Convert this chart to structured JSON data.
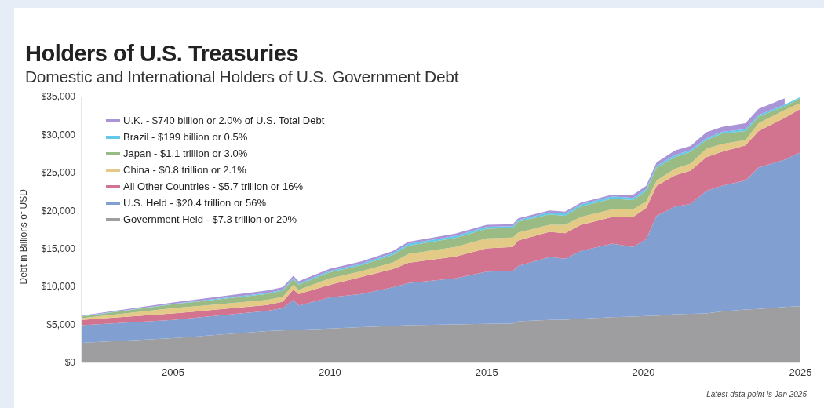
{
  "chart_data": {
    "type": "area",
    "title": "Holders of U.S. Treasuries",
    "subtitle": "Domestic and International Holders of U.S. Government Debt",
    "ylabel": "Debt in Billions of USD",
    "annotations": [
      "Latest data point is Jan 2025"
    ],
    "stacked": true,
    "legend": "top left",
    "grid": false,
    "x": [
      "2002-02",
      "2005-01",
      "2008-01",
      "2008-07",
      "2008-11",
      "2009-01",
      "2010-01",
      "2011-01",
      "2012-01",
      "2012-07",
      "2014-01",
      "2015-01",
      "2015-11",
      "2016-01",
      "2017-01",
      "2017-07",
      "2018-01",
      "2019-01",
      "2019-09",
      "2020-02",
      "2020-06",
      "2021-01",
      "2021-07",
      "2022-01",
      "2022-07",
      "2023-04",
      "2023-09",
      "2024-07",
      "2025-01"
    ],
    "xlim": [
      "2002-02",
      "2025-01"
    ],
    "xticks": [
      "2005",
      "2010",
      "2015",
      "2020",
      "2025"
    ],
    "ylim": [
      0,
      35000
    ],
    "yticks": [
      {
        "value": 0,
        "label": "$0"
      },
      {
        "value": 5000,
        "label": "$5,000"
      },
      {
        "value": 10000,
        "label": "$10,000"
      },
      {
        "value": 15000,
        "label": "$15,000"
      },
      {
        "value": 20000,
        "label": "$20,000"
      },
      {
        "value": 25000,
        "label": "$25,000"
      },
      {
        "value": 30000,
        "label": "$30,000"
      },
      {
        "value": 35000,
        "label": "$35,000"
      }
    ],
    "series": [
      {
        "name": "Government Held - $7.3 trillion or 20%",
        "color": "#9e9ea0",
        "values": [
          2570,
          3190,
          4120,
          4200,
          4300,
          4320,
          4470,
          4650,
          4800,
          4910,
          5000,
          5080,
          5100,
          5420,
          5600,
          5620,
          5760,
          5950,
          6050,
          6110,
          6150,
          6350,
          6400,
          6450,
          6700,
          6960,
          7050,
          7300,
          7410
        ]
      },
      {
        "name": "U.S. Held - $20.4 trillion or 56%",
        "color": "#829fd1",
        "values": [
          2330,
          2410,
          2670,
          2940,
          3930,
          3160,
          4110,
          4370,
          5080,
          5540,
          6080,
          6860,
          6940,
          7280,
          8290,
          8030,
          8920,
          9690,
          9150,
          10120,
          13160,
          14170,
          14460,
          16130,
          16560,
          16990,
          18610,
          19390,
          20240
        ]
      },
      {
        "name": "All Other Countries - $5.7 trillion or 16%",
        "color": "#d2738f",
        "values": [
          700,
          850,
          760,
          860,
          1380,
          1540,
          1650,
          2240,
          2410,
          2650,
          2850,
          3090,
          3160,
          3350,
          3290,
          3370,
          3430,
          3500,
          3940,
          4110,
          3950,
          4110,
          4390,
          4450,
          4460,
          4630,
          4800,
          5490,
          5730
        ]
      },
      {
        "name": "China - $0.8 trillion or 2.1%",
        "color": "#e4ca87",
        "values": [
          230,
          690,
          680,
          650,
          620,
          520,
          850,
          750,
          860,
          1170,
          1270,
          1300,
          1250,
          1030,
          930,
          1090,
          1030,
          1030,
          1030,
          860,
          690,
          860,
          930,
          1100,
          1030,
          680,
          1030,
          1030,
          780
        ]
      },
      {
        "name": "Japan - $1.1 trillion or 3.0%",
        "color": "#9abb83",
        "values": [
          210,
          520,
          790,
          800,
          750,
          690,
          790,
          790,
          1000,
          1100,
          1200,
          1270,
          1250,
          1440,
          1370,
          1200,
          1380,
          1380,
          1200,
          1380,
          1710,
          1540,
          1540,
          1130,
          1360,
          1200,
          860,
          510,
          640
        ]
      },
      {
        "name": "Brazil - $199 billion or 0.5%",
        "color": "#62c9e8",
        "values": [
          40,
          60,
          130,
          130,
          140,
          150,
          180,
          190,
          220,
          250,
          250,
          250,
          250,
          230,
          260,
          270,
          280,
          300,
          280,
          270,
          240,
          270,
          230,
          240,
          240,
          240,
          230,
          230,
          150
        ]
      },
      {
        "name": "U.K. - $740 billion or 2.0% of U.S. Total Debt",
        "color": "#a994d8",
        "values": [
          100,
          170,
          320,
          320,
          300,
          300,
          300,
          310,
          280,
          250,
          300,
          260,
          250,
          220,
          260,
          270,
          230,
          250,
          410,
          410,
          440,
          590,
          550,
          790,
          650,
          790,
          800,
          810,
          null
        ]
      }
    ]
  }
}
